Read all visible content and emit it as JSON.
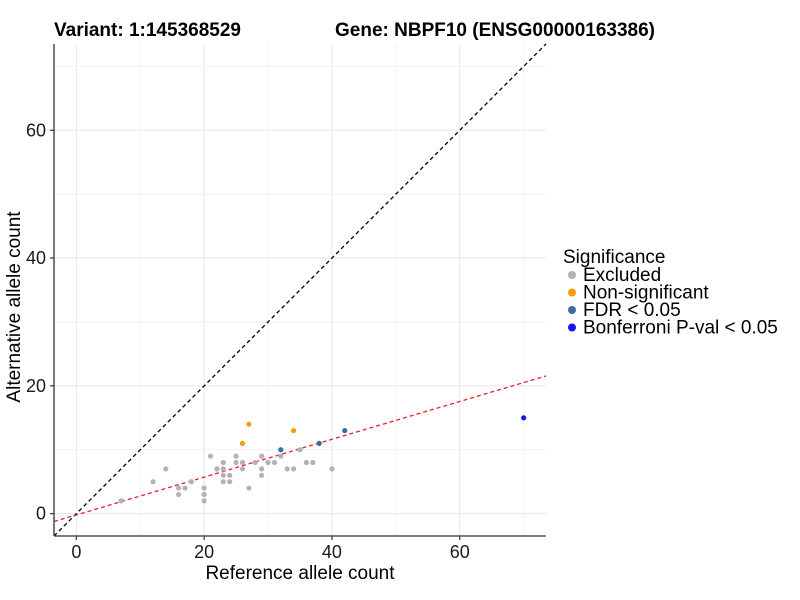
{
  "header": {
    "variant": "Variant: 1:145368529",
    "gene": "Gene: NBPF10 (ENSG00000163386)"
  },
  "chart_data": {
    "type": "scatter",
    "xlabel": "Reference allele count",
    "ylabel": "Alternative allele count",
    "xlim": [
      -3.5,
      73.5
    ],
    "ylim": [
      -3.5,
      73.5
    ],
    "x_ticks": [
      0,
      20,
      40,
      60
    ],
    "y_ticks": [
      0,
      20,
      40,
      60
    ],
    "grid": true,
    "legend": {
      "title": "Significance",
      "placement": "right",
      "entries": [
        {
          "key": "excluded",
          "label": "Excluded",
          "color": "#b3b3b3"
        },
        {
          "key": "nonsig",
          "label": "Non-significant",
          "color": "#f59e0b"
        },
        {
          "key": "fdr",
          "label": "FDR < 0.05",
          "color": "#3a6ea5"
        },
        {
          "key": "bonf",
          "label": "Bonferroni P-val < 0.05",
          "color": "#1515e6"
        }
      ]
    },
    "reference_lines": [
      {
        "name": "identity",
        "slope": 1,
        "intercept": 0,
        "color": "#000000",
        "dash": "dashed"
      },
      {
        "name": "fit",
        "slope": 0.2959,
        "intercept": -0.2,
        "color": "#e8202a",
        "dash": "dashed"
      }
    ],
    "series": [
      {
        "key": "excluded",
        "points": [
          [
            7,
            2
          ],
          [
            12,
            5
          ],
          [
            14,
            7
          ],
          [
            16,
            3
          ],
          [
            16,
            4
          ],
          [
            17,
            4
          ],
          [
            18,
            5
          ],
          [
            20,
            2
          ],
          [
            20,
            3
          ],
          [
            20,
            4
          ],
          [
            21,
            9
          ],
          [
            22,
            7
          ],
          [
            22,
            7
          ],
          [
            23,
            5
          ],
          [
            23,
            6
          ],
          [
            23,
            7
          ],
          [
            23,
            8
          ],
          [
            24,
            5
          ],
          [
            24,
            6
          ],
          [
            25,
            8
          ],
          [
            25,
            9
          ],
          [
            26,
            7
          ],
          [
            26,
            8
          ],
          [
            27,
            4
          ],
          [
            28,
            8
          ],
          [
            29,
            6
          ],
          [
            29,
            7
          ],
          [
            29,
            9
          ],
          [
            30,
            8
          ],
          [
            31,
            8
          ],
          [
            32,
            9
          ],
          [
            33,
            7
          ],
          [
            34,
            7
          ],
          [
            35,
            10
          ],
          [
            36,
            8
          ],
          [
            37,
            8
          ],
          [
            40,
            7
          ]
        ]
      },
      {
        "key": "nonsig",
        "points": [
          [
            26,
            11
          ],
          [
            27,
            14
          ],
          [
            34,
            13
          ]
        ]
      },
      {
        "key": "fdr",
        "points": [
          [
            32,
            10
          ],
          [
            38,
            11
          ],
          [
            42,
            13
          ]
        ]
      },
      {
        "key": "bonf",
        "points": [
          [
            70,
            15
          ]
        ]
      }
    ]
  }
}
